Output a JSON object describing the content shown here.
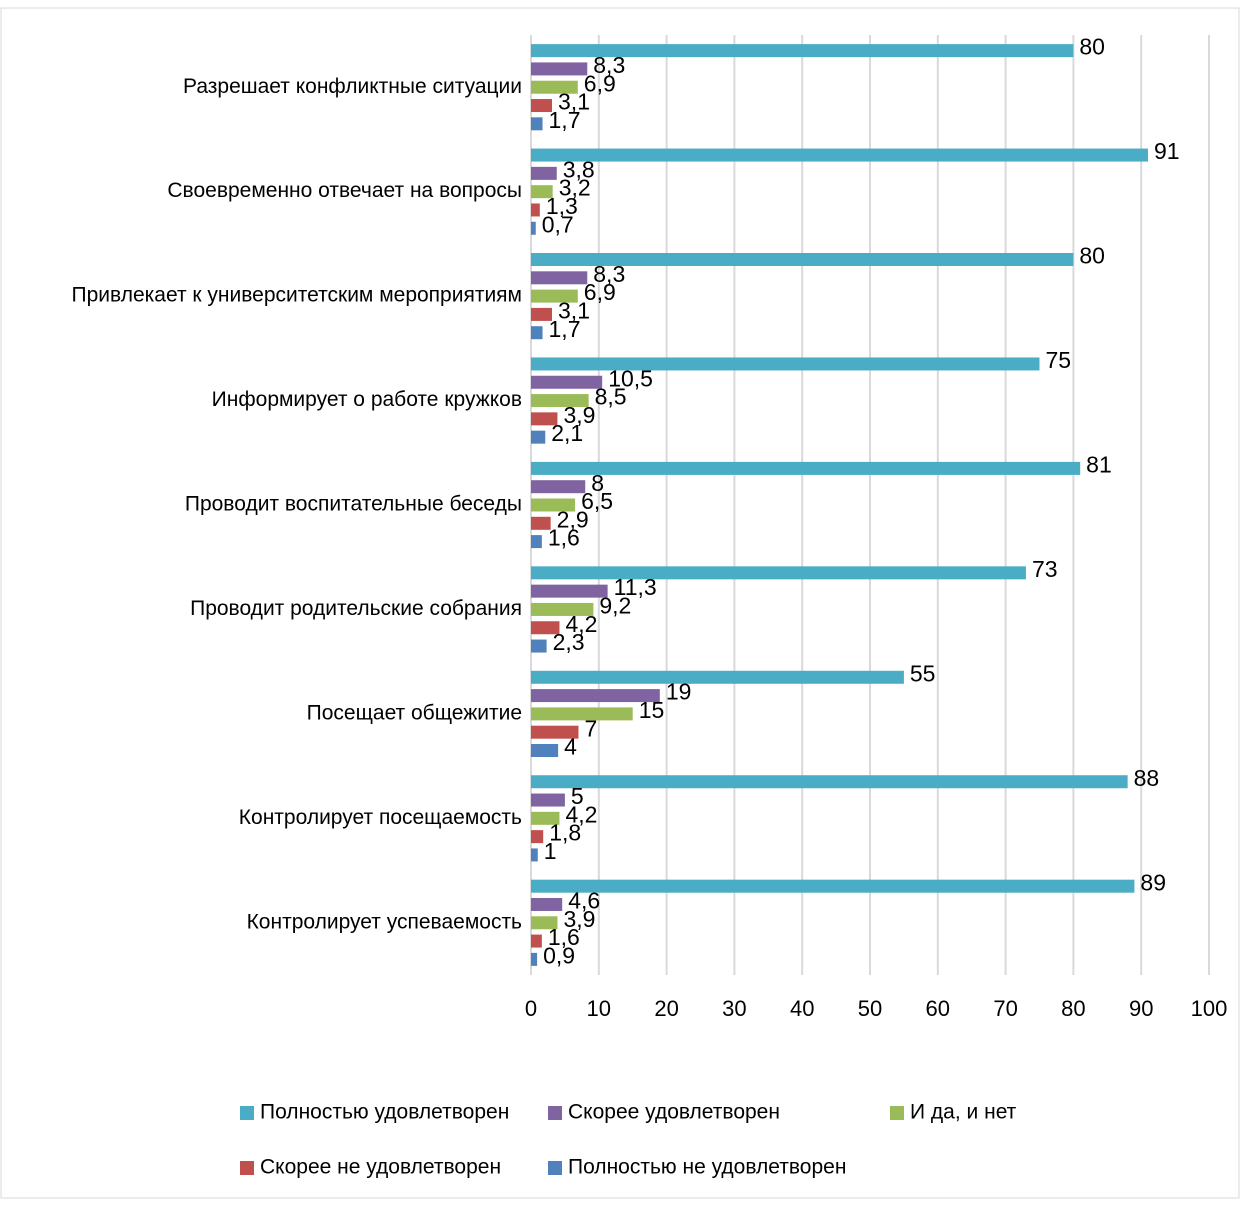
{
  "chart_data": {
    "type": "bar",
    "orientation": "horizontal",
    "categories": [
      "Разрешает конфликтные ситуации",
      "Своевременно отвечает на вопросы",
      "Привлекает к университетским мероприятиям",
      "Информирует о работе кружков",
      "Проводит воспитательные беседы",
      "Проводит родительские собрания",
      "Посещает общежитие",
      "Контролирует посещаемость",
      "Контролирует успеваемость"
    ],
    "series": [
      {
        "name": "Полностью удовлетворен",
        "color": "#4bacc6",
        "values": [
          80,
          91,
          80,
          75,
          81,
          73,
          55,
          88,
          89
        ],
        "value_labels": [
          "80",
          "91",
          "80",
          "75",
          "81",
          "73",
          "55",
          "88",
          "89"
        ]
      },
      {
        "name": "Скорее удовлетворен",
        "color": "#8064a2",
        "values": [
          8.3,
          3.8,
          8.3,
          10.5,
          8,
          11.3,
          19,
          5,
          4.6
        ],
        "value_labels": [
          "8,3",
          "3,8",
          "8,3",
          "10,5",
          "8",
          "11,3",
          "19",
          "5",
          "4,6"
        ]
      },
      {
        "name": "И да, и нет",
        "color": "#9bbb59",
        "values": [
          6.9,
          3.2,
          6.9,
          8.5,
          6.5,
          9.2,
          15,
          4.2,
          3.9
        ],
        "value_labels": [
          "6,9",
          "3,2",
          "6,9",
          "8,5",
          "6,5",
          "9,2",
          "15",
          "4,2",
          "3,9"
        ]
      },
      {
        "name": "Скорее не удовлетворен",
        "color": "#c0504d",
        "values": [
          3.1,
          1.3,
          3.1,
          3.9,
          2.9,
          4.2,
          7,
          1.8,
          1.6
        ],
        "value_labels": [
          "3,1",
          "1,3",
          "3,1",
          "3,9",
          "2,9",
          "4,2",
          "7",
          "1,8",
          "1,6"
        ]
      },
      {
        "name": "Полностью не удовлетворен",
        "color": "#4f81bd",
        "values": [
          1.7,
          0.7,
          1.7,
          2.1,
          1.6,
          2.3,
          4,
          1,
          0.9
        ],
        "value_labels": [
          "1,7",
          "0,7",
          "1,7",
          "2,1",
          "1,6",
          "2,3",
          "4",
          "1",
          "0,9"
        ]
      }
    ],
    "xlim": [
      0,
      100
    ],
    "xticks": [
      0,
      10,
      20,
      30,
      40,
      50,
      60,
      70,
      80,
      90,
      100
    ],
    "grid": true,
    "legend": "bottom"
  }
}
